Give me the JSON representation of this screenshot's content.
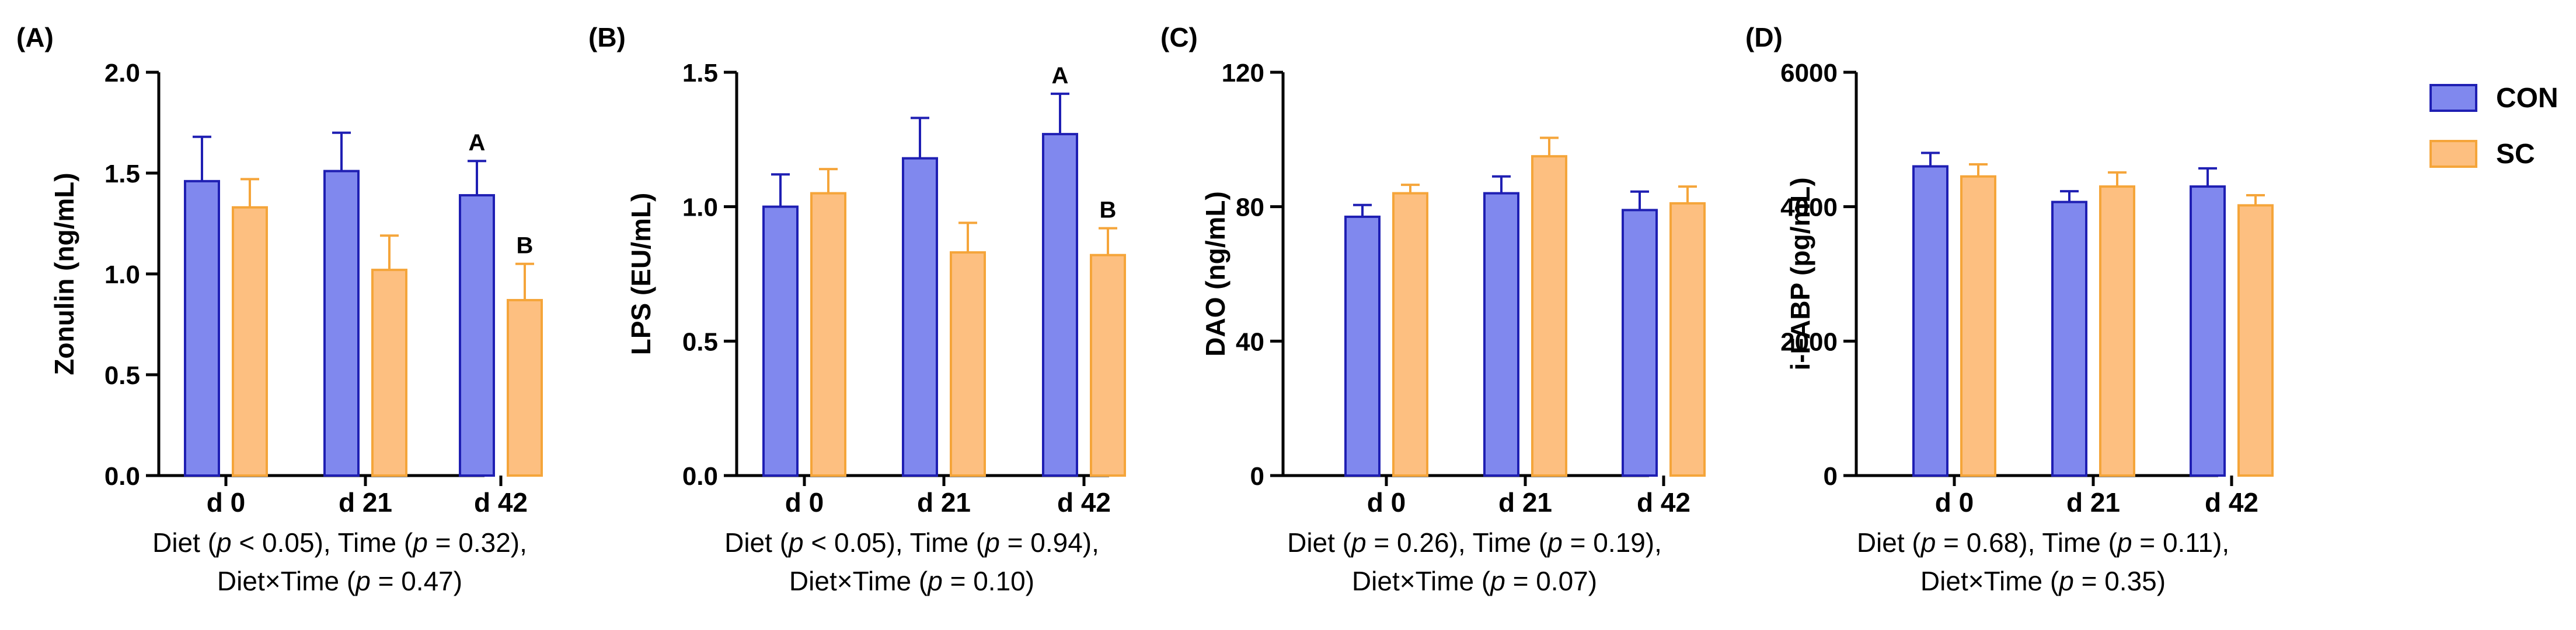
{
  "colors": {
    "con": "#8088EE",
    "con_edge": "#1F1FB3",
    "sc": "#FDBF80",
    "sc_edge": "#F5A53A",
    "axis": "#000000"
  },
  "legend": [
    {
      "key": "con",
      "label": "CON"
    },
    {
      "key": "sc",
      "label": "SC"
    }
  ],
  "chart_data": [
    {
      "type": "bar",
      "panel_label": "(A)",
      "ylabel": "Zonulin (ng/mL)",
      "ylim": [
        0,
        2.0
      ],
      "yticks": [
        "0.0",
        "0.5",
        "1.0",
        "1.5",
        "2.0"
      ],
      "categories": [
        "d 0",
        "d 21",
        "d 42"
      ],
      "series": [
        {
          "name": "CON",
          "values": [
            1.46,
            1.51,
            1.39
          ],
          "errors": [
            0.22,
            0.19,
            0.17
          ],
          "letters": [
            "",
            "",
            "A"
          ]
        },
        {
          "name": "SC",
          "values": [
            1.33,
            1.02,
            0.87
          ],
          "errors": [
            0.14,
            0.17,
            0.18
          ],
          "letters": [
            "",
            "",
            "B"
          ]
        }
      ],
      "caption": {
        "l1_a": "Diet (",
        "l1_b": " < 0.05), Time (",
        "l1_c": " = 0.32),",
        "l2_a": "Diet×Time (",
        "l2_b": " = 0.47)",
        "p": "p"
      }
    },
    {
      "type": "bar",
      "panel_label": "(B)",
      "ylabel": "LPS (EU/mL)",
      "ylim": [
        0,
        1.5
      ],
      "yticks": [
        "0.0",
        "0.5",
        "1.0",
        "1.5"
      ],
      "categories": [
        "d 0",
        "d 21",
        "d 42"
      ],
      "series": [
        {
          "name": "CON",
          "values": [
            1.0,
            1.18,
            1.27
          ],
          "errors": [
            0.12,
            0.15,
            0.15
          ],
          "letters": [
            "",
            "",
            "A"
          ]
        },
        {
          "name": "SC",
          "values": [
            1.05,
            0.83,
            0.82
          ],
          "errors": [
            0.09,
            0.11,
            0.1
          ],
          "letters": [
            "",
            "",
            "B"
          ]
        }
      ],
      "caption": {
        "l1_a": "Diet (",
        "l1_b": " < 0.05), Time (",
        "l1_c": " = 0.94),",
        "l2_a": "Diet×Time (",
        "l2_b": " = 0.10)",
        "p": "p"
      }
    },
    {
      "type": "bar",
      "panel_label": "(C)",
      "ylabel": "DAO (ng/mL)",
      "ylim": [
        0,
        120
      ],
      "yticks": [
        "0",
        "40",
        "80",
        "120"
      ],
      "categories": [
        "d 0",
        "d 21",
        "d 42"
      ],
      "series": [
        {
          "name": "CON",
          "values": [
            77,
            84,
            79
          ],
          "errors": [
            3.5,
            5.0,
            5.5
          ],
          "letters": [
            "",
            "",
            ""
          ]
        },
        {
          "name": "SC",
          "values": [
            84,
            95,
            81
          ],
          "errors": [
            2.5,
            5.5,
            5.0
          ],
          "letters": [
            "",
            "",
            ""
          ]
        }
      ],
      "caption": {
        "l1_a": "Diet (",
        "l1_b": " = 0.26), Time (",
        "l1_c": " = 0.19),",
        "l2_a": "Diet×Time (",
        "l2_b": " = 0.07)",
        "p": "p"
      }
    },
    {
      "type": "bar",
      "panel_label": "(D)",
      "ylabel": "i-FABP (pg/mL)",
      "ylim": [
        0,
        6000
      ],
      "yticks": [
        "0",
        "2000",
        "4000",
        "6000"
      ],
      "categories": [
        "d 0",
        "d 21",
        "d 42"
      ],
      "series": [
        {
          "name": "CON",
          "values": [
            4600,
            4070,
            4300
          ],
          "errors": [
            200,
            160,
            270
          ],
          "letters": [
            "",
            "",
            ""
          ]
        },
        {
          "name": "SC",
          "values": [
            4450,
            4300,
            4020
          ],
          "errors": [
            180,
            210,
            150
          ],
          "letters": [
            "",
            "",
            ""
          ]
        }
      ],
      "caption": {
        "l1_a": "Diet (",
        "l1_b": " = 0.68), Time (",
        "l1_c": " = 0.11),",
        "l2_a": "Diet×Time (",
        "l2_b": " = 0.35)",
        "p": "p"
      }
    }
  ]
}
